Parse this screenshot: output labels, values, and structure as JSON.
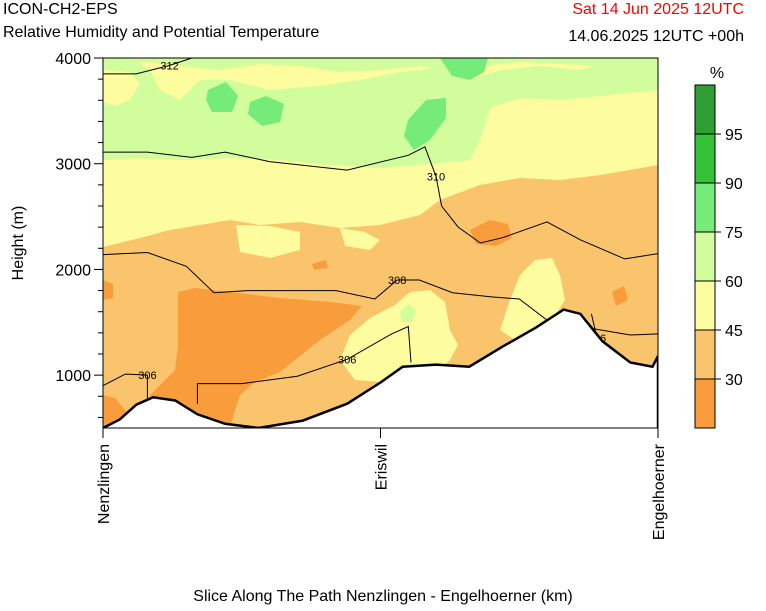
{
  "header": {
    "model": "ICON-CH2-EPS",
    "product": "Relative Humidity and Potential Temperature",
    "valid_time": "Sat 14 Jun 2025 12UTC",
    "run_info": "14.06.2025 12UTC +00h"
  },
  "colors": {
    "valid_time": "#ff0000",
    "terrain": "#ffffff",
    "contour": "#000000"
  },
  "chart_data": {
    "type": "heatmap",
    "title": "Relative Humidity and Potential Temperature",
    "xlabel": "Slice Along The Path Nenzlingen - Engelhoerner (km)",
    "ylabel": "Height (m)",
    "ylim": [
      500,
      4000
    ],
    "x_ticks": [
      "Nenzlingen",
      "Eriswil",
      "Engelhoerner"
    ],
    "y_ticks": [
      1000,
      2000,
      3000,
      4000
    ],
    "colorbar": {
      "unit": "%",
      "tick_labels": [
        30,
        45,
        60,
        75,
        90,
        95
      ],
      "bins": [
        {
          "from": 0,
          "to": 30,
          "color": "#f99d3c"
        },
        {
          "from": 30,
          "to": 45,
          "color": "#f9c46c"
        },
        {
          "from": 45,
          "to": 60,
          "color": "#fdfc9f"
        },
        {
          "from": 60,
          "to": 75,
          "color": "#d1fd9c"
        },
        {
          "from": 75,
          "to": 90,
          "color": "#75eb79"
        },
        {
          "from": 90,
          "to": 95,
          "color": "#34c237"
        },
        {
          "from": 95,
          "to": 100,
          "color": "#2f9e33"
        }
      ]
    },
    "theta_contours": [
      {
        "label": "312",
        "points": [
          [
            0,
            3850
          ],
          [
            0.06,
            3850
          ],
          [
            0.12,
            3930
          ],
          [
            0.16,
            4000
          ]
        ]
      },
      {
        "label": "310",
        "points": [
          [
            0,
            3110
          ],
          [
            0.08,
            3110
          ],
          [
            0.16,
            3060
          ],
          [
            0.22,
            3110
          ],
          [
            0.3,
            3020
          ],
          [
            0.44,
            2940
          ],
          [
            0.55,
            3080
          ],
          [
            0.58,
            3160
          ],
          [
            0.6,
            2880
          ],
          [
            0.61,
            2600
          ],
          [
            0.64,
            2400
          ],
          [
            0.68,
            2250
          ],
          [
            0.72,
            2300
          ],
          [
            0.8,
            2450
          ],
          [
            0.86,
            2280
          ],
          [
            0.94,
            2100
          ],
          [
            1,
            2150
          ]
        ]
      },
      {
        "label": "308",
        "points": [
          [
            0,
            2140
          ],
          [
            0.08,
            2160
          ],
          [
            0.15,
            2030
          ],
          [
            0.2,
            1780
          ],
          [
            0.26,
            1800
          ],
          [
            0.35,
            1800
          ],
          [
            0.42,
            1800
          ],
          [
            0.49,
            1720
          ],
          [
            0.53,
            1900
          ],
          [
            0.57,
            1900
          ],
          [
            0.63,
            1780
          ],
          [
            0.7,
            1740
          ],
          [
            0.75,
            1720
          ],
          [
            0.8,
            1520
          ],
          [
            0.86,
            1460
          ],
          [
            0.95,
            1380
          ],
          [
            1,
            1390
          ]
        ]
      },
      {
        "label": "306",
        "points": [
          [
            0,
            900
          ],
          [
            0.04,
            1010
          ],
          [
            0.08,
            1000
          ],
          [
            0.08,
            750
          ]
        ]
      },
      {
        "label": "306",
        "points": [
          [
            0.17,
            730
          ],
          [
            0.17,
            920
          ],
          [
            0.25,
            920
          ],
          [
            0.35,
            990
          ],
          [
            0.44,
            1150
          ],
          [
            0.52,
            1390
          ],
          [
            0.55,
            1460
          ],
          [
            0.555,
            1120
          ]
        ]
      },
      {
        "label": "306",
        "points": [
          [
            0.88,
            1580
          ],
          [
            0.89,
            1350
          ]
        ]
      }
    ],
    "terrain_height_m": [
      [
        0,
        500
      ],
      [
        0.03,
        580
      ],
      [
        0.06,
        720
      ],
      [
        0.09,
        790
      ],
      [
        0.13,
        760
      ],
      [
        0.17,
        630
      ],
      [
        0.22,
        540
      ],
      [
        0.28,
        500
      ],
      [
        0.36,
        570
      ],
      [
        0.44,
        730
      ],
      [
        0.5,
        930
      ],
      [
        0.54,
        1080
      ],
      [
        0.6,
        1100
      ],
      [
        0.66,
        1080
      ],
      [
        0.72,
        1270
      ],
      [
        0.78,
        1450
      ],
      [
        0.83,
        1620
      ],
      [
        0.86,
        1580
      ],
      [
        0.9,
        1320
      ],
      [
        0.95,
        1120
      ],
      [
        0.99,
        1080
      ],
      [
        1,
        1180
      ]
    ]
  },
  "x_axis_title": "Slice Along The Path Nenzlingen - Engelhoerner (km)"
}
